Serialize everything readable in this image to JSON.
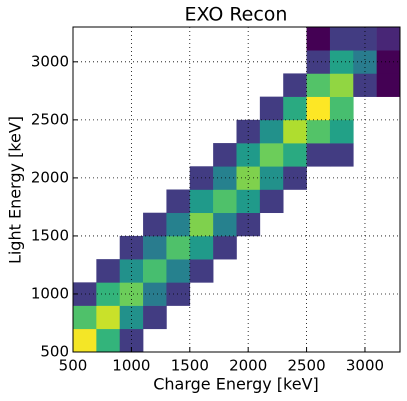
{
  "chart_data": {
    "type": "heatmap",
    "title": "EXO Recon",
    "xlabel": "Charge Energy [keV]",
    "ylabel": "Light Energy [keV]",
    "x_bins": [
      500,
      700,
      900,
      1100,
      1300,
      1500,
      1700,
      1900,
      2100,
      2300,
      2500,
      2700,
      2900,
      3100,
      3300
    ],
    "y_bins": [
      500,
      700,
      900,
      1100,
      1300,
      1500,
      1700,
      1900,
      2100,
      2300,
      2500,
      2700,
      2900,
      3100,
      3300
    ],
    "z": [
      [
        90,
        25,
        4,
        null,
        null,
        null,
        null,
        null,
        null,
        null,
        null,
        null,
        null,
        null
      ],
      [
        32,
        70,
        14,
        4,
        null,
        null,
        null,
        null,
        null,
        null,
        null,
        null,
        null,
        null
      ],
      [
        4,
        25,
        40,
        10,
        4,
        null,
        null,
        null,
        null,
        null,
        null,
        null,
        null,
        null
      ],
      [
        null,
        4,
        14,
        30,
        11,
        4,
        null,
        null,
        null,
        null,
        null,
        null,
        null,
        null
      ],
      [
        null,
        null,
        4,
        10,
        32,
        16,
        4,
        null,
        null,
        null,
        null,
        null,
        null,
        null
      ],
      [
        null,
        null,
        null,
        4,
        11,
        45,
        11,
        4,
        null,
        null,
        null,
        null,
        null,
        null
      ],
      [
        null,
        null,
        null,
        null,
        4,
        16,
        32,
        16,
        4,
        null,
        null,
        null,
        null,
        null
      ],
      [
        null,
        null,
        null,
        null,
        null,
        4,
        11,
        45,
        14,
        4,
        null,
        null,
        null,
        null
      ],
      [
        null,
        null,
        null,
        null,
        null,
        null,
        4,
        16,
        40,
        21,
        4,
        4,
        null,
        null
      ],
      [
        null,
        null,
        null,
        null,
        null,
        null,
        null,
        4,
        14,
        60,
        33,
        18,
        null,
        null
      ],
      [
        null,
        null,
        null,
        null,
        null,
        null,
        null,
        null,
        4,
        21,
        95,
        30,
        null,
        null
      ],
      [
        null,
        null,
        null,
        null,
        null,
        null,
        null,
        null,
        null,
        4,
        33,
        50,
        4,
        2
      ],
      [
        null,
        null,
        null,
        null,
        null,
        null,
        null,
        null,
        null,
        null,
        4,
        18,
        10,
        2
      ],
      [
        null,
        null,
        null,
        null,
        null,
        null,
        null,
        null,
        null,
        null,
        2,
        4,
        4,
        3
      ]
    ],
    "colormap": "viridis",
    "log_color": true,
    "xlim": [
      500,
      3300
    ],
    "ylim": [
      500,
      3300
    ],
    "xticks": [
      500,
      1000,
      1500,
      2000,
      2500,
      3000
    ],
    "yticks": [
      500,
      1000,
      1500,
      2000,
      2500,
      3000
    ],
    "grid": true
  }
}
